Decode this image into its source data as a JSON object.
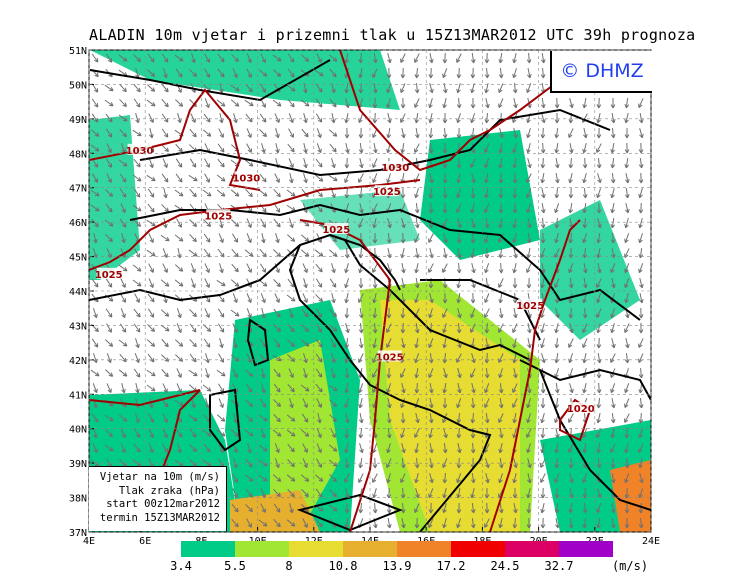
{
  "title": "ALADIN 10m vjetar i prizemni tlak u 15Z13MAR2012 UTC 39h prognoza",
  "logo": "© DHMZ",
  "legend_box": {
    "line1": "Vjetar na 10m (m/s)",
    "line2": "Tlak zraka (hPa)",
    "line3": "start 00z12mar2012",
    "line4": "termin 15Z13MAR2012"
  },
  "axes": {
    "lon_ticks": [
      "4E",
      "6E",
      "8E",
      "10E",
      "12E",
      "14E",
      "16E",
      "18E",
      "20E",
      "22E",
      "24E"
    ],
    "lat_ticks": [
      "37N",
      "38N",
      "39N",
      "40N",
      "41N",
      "42N",
      "43N",
      "44N",
      "45N",
      "46N",
      "47N",
      "48N",
      "49N",
      "50N",
      "51N"
    ],
    "lon_range": [
      4,
      24
    ],
    "lat_range": [
      37,
      51
    ]
  },
  "colorbar": {
    "unit": "(m/s)",
    "labels": [
      "3.4",
      "5.5",
      "8",
      "10.8",
      "13.9",
      "17.2",
      "24.5",
      "32.7"
    ],
    "colors": [
      "#00cc88",
      "#a0e632",
      "#e6dc32",
      "#e6af2d",
      "#f08228",
      "#f00000",
      "#dc0064",
      "#a000c8"
    ]
  },
  "isobars": [
    {
      "label": "1030",
      "lon": 5.8,
      "lat": 48.1
    },
    {
      "label": "1030",
      "lon": 9.6,
      "lat": 47.3
    },
    {
      "label": "1030",
      "lon": 14.9,
      "lat": 47.6
    },
    {
      "label": "1025",
      "lon": 14.6,
      "lat": 46.9
    },
    {
      "label": "1025",
      "lon": 8.6,
      "lat": 46.2
    },
    {
      "label": "1025",
      "lon": 12.8,
      "lat": 45.8
    },
    {
      "label": "1025",
      "lon": 4.7,
      "lat": 44.5
    },
    {
      "label": "1025",
      "lon": 19.7,
      "lat": 43.6
    },
    {
      "label": "1025",
      "lon": 14.7,
      "lat": 42.1
    },
    {
      "label": "1020",
      "lon": 21.5,
      "lat": 40.6
    }
  ],
  "colors": {
    "isobar": "#a00000",
    "border": "#000000",
    "arrow": "#707070"
  }
}
